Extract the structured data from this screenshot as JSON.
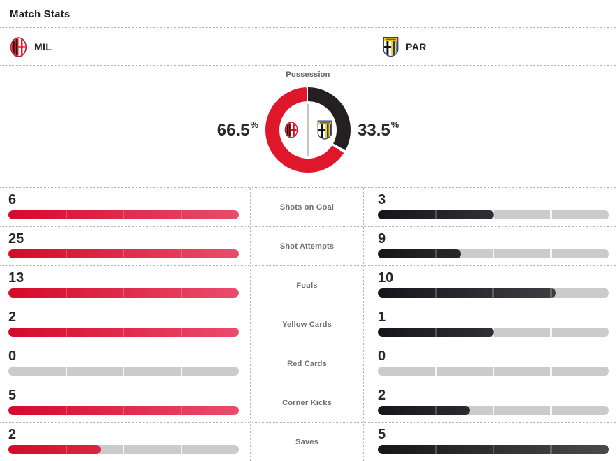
{
  "title": "Match Stats",
  "teams": {
    "home": {
      "abbr": "MIL"
    },
    "away": {
      "abbr": "PAR"
    }
  },
  "possession": {
    "label": "Possession",
    "home_display": "66.5",
    "away_display": "33.5",
    "pct_symbol": "%",
    "home_pct": 66.5,
    "away_pct": 33.5,
    "home_color": "#e0162b",
    "away_color": "#241f21"
  },
  "stats": [
    {
      "label": "Shots on Goal",
      "home": 6,
      "away": 3
    },
    {
      "label": "Shot Attempts",
      "home": 25,
      "away": 9
    },
    {
      "label": "Fouls",
      "home": 13,
      "away": 10
    },
    {
      "label": "Yellow Cards",
      "home": 2,
      "away": 1
    },
    {
      "label": "Red Cards",
      "home": 0,
      "away": 0
    },
    {
      "label": "Corner Kicks",
      "home": 5,
      "away": 2
    },
    {
      "label": "Saves",
      "home": 2,
      "away": 5
    }
  ],
  "colors": {
    "home_bar_gradient": [
      "#d40a2b",
      "#ea4c6c"
    ],
    "away_bar_gradient": [
      "#17151a",
      "#4b494d"
    ],
    "bar_track": "#cbcbcb",
    "dotted_border": "#b3b3b3"
  },
  "chart_data": [
    {
      "type": "pie",
      "title": "Possession",
      "labels": [
        "MIL",
        "PAR"
      ],
      "values": [
        66.5,
        33.5
      ],
      "colors": [
        "#e0162b",
        "#241f21"
      ],
      "donut": true,
      "start": "top, away segment clockwise first"
    },
    {
      "type": "bar",
      "title": "Match Stats",
      "categories": [
        "Shots on Goal",
        "Shot Attempts",
        "Fouls",
        "Yellow Cards",
        "Red Cards",
        "Corner Kicks",
        "Saves"
      ],
      "series": [
        {
          "name": "MIL",
          "values": [
            6,
            25,
            13,
            2,
            0,
            5,
            2
          ]
        },
        {
          "name": "PAR",
          "values": [
            3,
            9,
            10,
            1,
            0,
            2,
            5
          ]
        }
      ],
      "note": "horizontal paired bars; each bar length scaled to the row maximum"
    }
  ]
}
